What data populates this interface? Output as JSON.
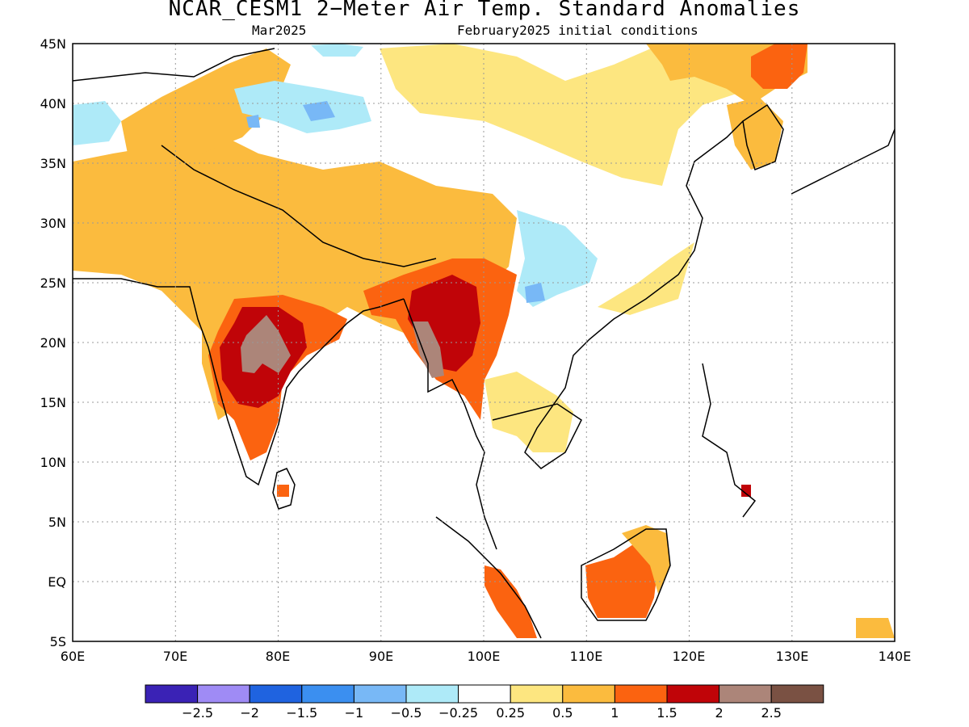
{
  "title": "NCAR_CESM1 2−Meter Air Temp. Standard Anomalies",
  "subtitle_left": "Mar2025",
  "subtitle_right": "February2025 initial conditions",
  "map": {
    "lon_range": [
      60,
      140
    ],
    "lat_range": [
      -5,
      45
    ],
    "lon_labels": [
      "60E",
      "70E",
      "80E",
      "90E",
      "100E",
      "110E",
      "120E",
      "130E",
      "140E"
    ],
    "lat_labels": [
      "45N",
      "40N",
      "35N",
      "30N",
      "25N",
      "20N",
      "15N",
      "10N",
      "5N",
      "EQ",
      "5S"
    ],
    "grid": "dotted",
    "regions": [
      {
        "name": "india-core",
        "level": "1.5-2"
      },
      {
        "name": "myanmar-core",
        "level": "1.5-2"
      },
      {
        "name": "deccan-peak",
        "level": "2-2.5"
      },
      {
        "name": "tibet-west",
        "level": "0.5-1"
      },
      {
        "name": "yunnan-cool",
        "level": "-0.5--0.25"
      },
      {
        "name": "tarim-cool",
        "level": "-1--0.5"
      },
      {
        "name": "northeast-china-warm",
        "level": "1-1.5"
      },
      {
        "name": "borneo-warm",
        "level": "1-1.5"
      },
      {
        "name": "sumatra-warm",
        "level": "1-1.5"
      }
    ]
  },
  "colorbar": {
    "colors": [
      "#3a22b5",
      "#9f8bf5",
      "#1f63e0",
      "#3b8ff0",
      "#78b8f6",
      "#aeeaf8",
      "#ffffff",
      "#fde680",
      "#fbbb3e",
      "#fb6310",
      "#c00408",
      "#ac8579",
      "#7a5143"
    ],
    "tick_labels": [
      "−2.5",
      "−2",
      "−1.5",
      "−1",
      "−0.5",
      "−0.25",
      "0.25",
      "0.5",
      "1",
      "1.5",
      "2",
      "2.5"
    ]
  }
}
